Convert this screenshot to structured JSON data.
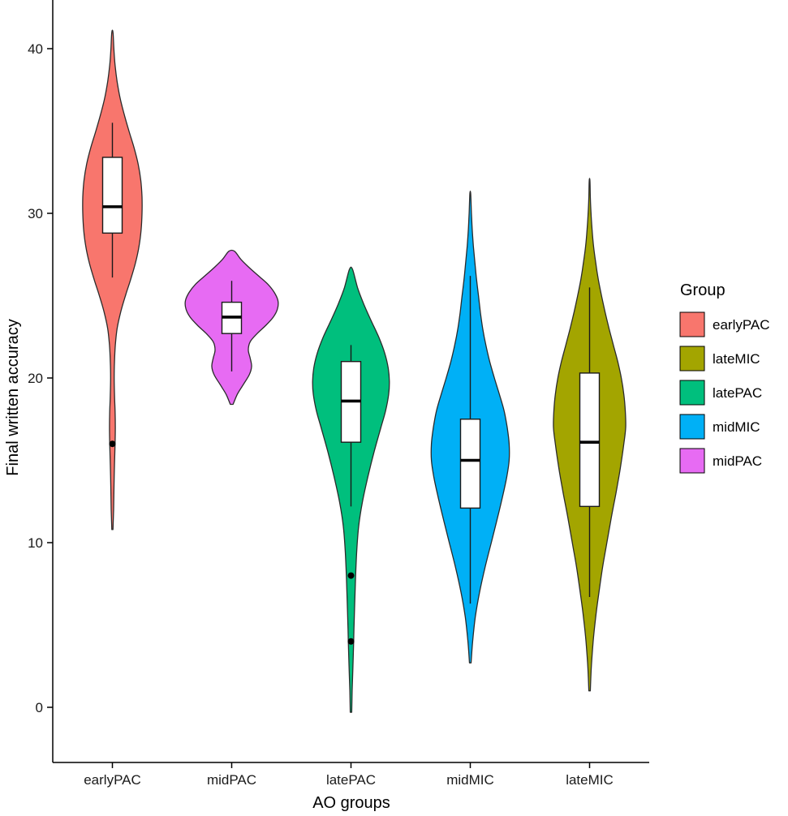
{
  "axes": {
    "x_label": "AO groups",
    "y_label": "Final written accuracy",
    "y_ticks": [
      0,
      10,
      20,
      30,
      40
    ],
    "x_categories": [
      "earlyPAC",
      "midPAC",
      "latePAC",
      "midMIC",
      "lateMIC"
    ]
  },
  "legend": {
    "title": "Group",
    "entries": [
      {
        "label": "earlyPAC",
        "color": "#F8766D"
      },
      {
        "label": "lateMIC",
        "color": "#A3A500"
      },
      {
        "label": "latePAC",
        "color": "#00BF7D"
      },
      {
        "label": "midMIC",
        "color": "#00B0F6"
      },
      {
        "label": "midPAC",
        "color": "#E76BF3"
      }
    ]
  },
  "chart_data": {
    "type": "violin",
    "title": "",
    "xlabel": "AO groups",
    "ylabel": "Final written accuracy",
    "ylim": [
      -3,
      43
    ],
    "grid": false,
    "legend_position": "right",
    "groups": [
      {
        "name": "earlyPAC",
        "color": "#F8766D",
        "width_scale": 0.64,
        "density": [
          [
            10.8,
            0.02
          ],
          [
            12,
            0.04
          ],
          [
            14,
            0.06
          ],
          [
            16,
            0.09
          ],
          [
            17,
            0.1
          ],
          [
            18,
            0.09
          ],
          [
            19,
            0.07
          ],
          [
            20,
            0.06
          ],
          [
            21,
            0.07
          ],
          [
            22,
            0.1
          ],
          [
            23,
            0.16
          ],
          [
            24,
            0.28
          ],
          [
            25,
            0.44
          ],
          [
            26,
            0.62
          ],
          [
            27,
            0.78
          ],
          [
            28,
            0.9
          ],
          [
            29,
            0.97
          ],
          [
            30,
            1.0
          ],
          [
            31,
            1.0
          ],
          [
            32,
            0.96
          ],
          [
            33,
            0.87
          ],
          [
            34,
            0.73
          ],
          [
            35,
            0.56
          ],
          [
            36,
            0.4
          ],
          [
            37,
            0.26
          ],
          [
            38,
            0.16
          ],
          [
            39,
            0.09
          ],
          [
            40,
            0.05
          ],
          [
            41,
            0.02
          ]
        ],
        "box": {
          "whisker_low": 26.1,
          "q1": 28.8,
          "median": 30.4,
          "q3": 33.4,
          "whisker_high": 35.5
        },
        "outliers": [
          16
        ]
      },
      {
        "name": "midPAC",
        "color": "#E76BF3",
        "width_scale": 1.0,
        "density": [
          [
            18.4,
            0.03
          ],
          [
            19.0,
            0.12
          ],
          [
            19.6,
            0.25
          ],
          [
            20.2,
            0.38
          ],
          [
            20.7,
            0.43
          ],
          [
            21.2,
            0.4
          ],
          [
            21.7,
            0.36
          ],
          [
            22.2,
            0.4
          ],
          [
            22.7,
            0.55
          ],
          [
            23.2,
            0.74
          ],
          [
            23.7,
            0.9
          ],
          [
            24.2,
            0.99
          ],
          [
            24.7,
            1.0
          ],
          [
            25.2,
            0.92
          ],
          [
            25.7,
            0.78
          ],
          [
            26.2,
            0.58
          ],
          [
            26.7,
            0.38
          ],
          [
            27.2,
            0.2
          ],
          [
            27.7,
            0.06
          ]
        ],
        "box": {
          "whisker_low": 20.4,
          "q1": 22.7,
          "median": 23.7,
          "q3": 24.6,
          "whisker_high": 25.9
        },
        "outliers": []
      },
      {
        "name": "latePAC",
        "color": "#00BF7D",
        "width_scale": 0.83,
        "density": [
          [
            -0.3,
            0.02
          ],
          [
            1,
            0.03
          ],
          [
            2.5,
            0.05
          ],
          [
            4,
            0.07
          ],
          [
            5,
            0.08
          ],
          [
            6.5,
            0.1
          ],
          [
            8,
            0.12
          ],
          [
            9.5,
            0.15
          ],
          [
            11,
            0.2
          ],
          [
            12.5,
            0.3
          ],
          [
            14,
            0.44
          ],
          [
            15.5,
            0.6
          ],
          [
            17,
            0.78
          ],
          [
            18,
            0.9
          ],
          [
            19,
            0.98
          ],
          [
            19.8,
            1.0
          ],
          [
            20.6,
            0.97
          ],
          [
            21.5,
            0.88
          ],
          [
            22.5,
            0.72
          ],
          [
            23.5,
            0.52
          ],
          [
            24.5,
            0.33
          ],
          [
            25.5,
            0.17
          ],
          [
            26.6,
            0.04
          ]
        ],
        "box": {
          "whisker_low": 12.2,
          "q1": 16.1,
          "median": 18.6,
          "q3": 21.0,
          "whisker_high": 22.0
        },
        "outliers": [
          8,
          4
        ]
      },
      {
        "name": "midMIC",
        "color": "#00B0F6",
        "width_scale": 0.84,
        "density": [
          [
            2.7,
            0.02
          ],
          [
            4,
            0.06
          ],
          [
            5.5,
            0.13
          ],
          [
            7,
            0.24
          ],
          [
            8.5,
            0.38
          ],
          [
            10,
            0.54
          ],
          [
            11.5,
            0.7
          ],
          [
            13,
            0.85
          ],
          [
            14,
            0.94
          ],
          [
            15,
            1.0
          ],
          [
            16,
            1.0
          ],
          [
            17,
            0.95
          ],
          [
            18,
            0.87
          ],
          [
            19,
            0.75
          ],
          [
            20,
            0.62
          ],
          [
            21,
            0.5
          ],
          [
            22,
            0.4
          ],
          [
            23,
            0.32
          ],
          [
            24,
            0.26
          ],
          [
            25,
            0.21
          ],
          [
            26,
            0.16
          ],
          [
            27,
            0.12
          ],
          [
            28,
            0.08
          ],
          [
            29,
            0.05
          ],
          [
            30,
            0.03
          ],
          [
            31.2,
            0.01
          ]
        ],
        "box": {
          "whisker_low": 6.3,
          "q1": 12.1,
          "median": 15.0,
          "q3": 17.5,
          "whisker_high": 26.2
        },
        "outliers": []
      },
      {
        "name": "lateMIC",
        "color": "#A3A500",
        "width_scale": 0.78,
        "density": [
          [
            1,
            0.02
          ],
          [
            2.5,
            0.05
          ],
          [
            4,
            0.1
          ],
          [
            5.5,
            0.17
          ],
          [
            7,
            0.26
          ],
          [
            8.5,
            0.36
          ],
          [
            10,
            0.48
          ],
          [
            11.5,
            0.6
          ],
          [
            13,
            0.73
          ],
          [
            14.5,
            0.85
          ],
          [
            16,
            0.95
          ],
          [
            17,
            1.0
          ],
          [
            18,
            0.99
          ],
          [
            19,
            0.95
          ],
          [
            20,
            0.88
          ],
          [
            21,
            0.78
          ],
          [
            22,
            0.66
          ],
          [
            23,
            0.54
          ],
          [
            24,
            0.43
          ],
          [
            25,
            0.33
          ],
          [
            26,
            0.24
          ],
          [
            27,
            0.17
          ],
          [
            28,
            0.11
          ],
          [
            29,
            0.07
          ],
          [
            30,
            0.04
          ],
          [
            31,
            0.02
          ],
          [
            32,
            0.01
          ]
        ],
        "box": {
          "whisker_low": 6.7,
          "q1": 12.2,
          "median": 16.1,
          "q3": 20.3,
          "whisker_high": 25.5
        },
        "outliers": []
      }
    ]
  }
}
